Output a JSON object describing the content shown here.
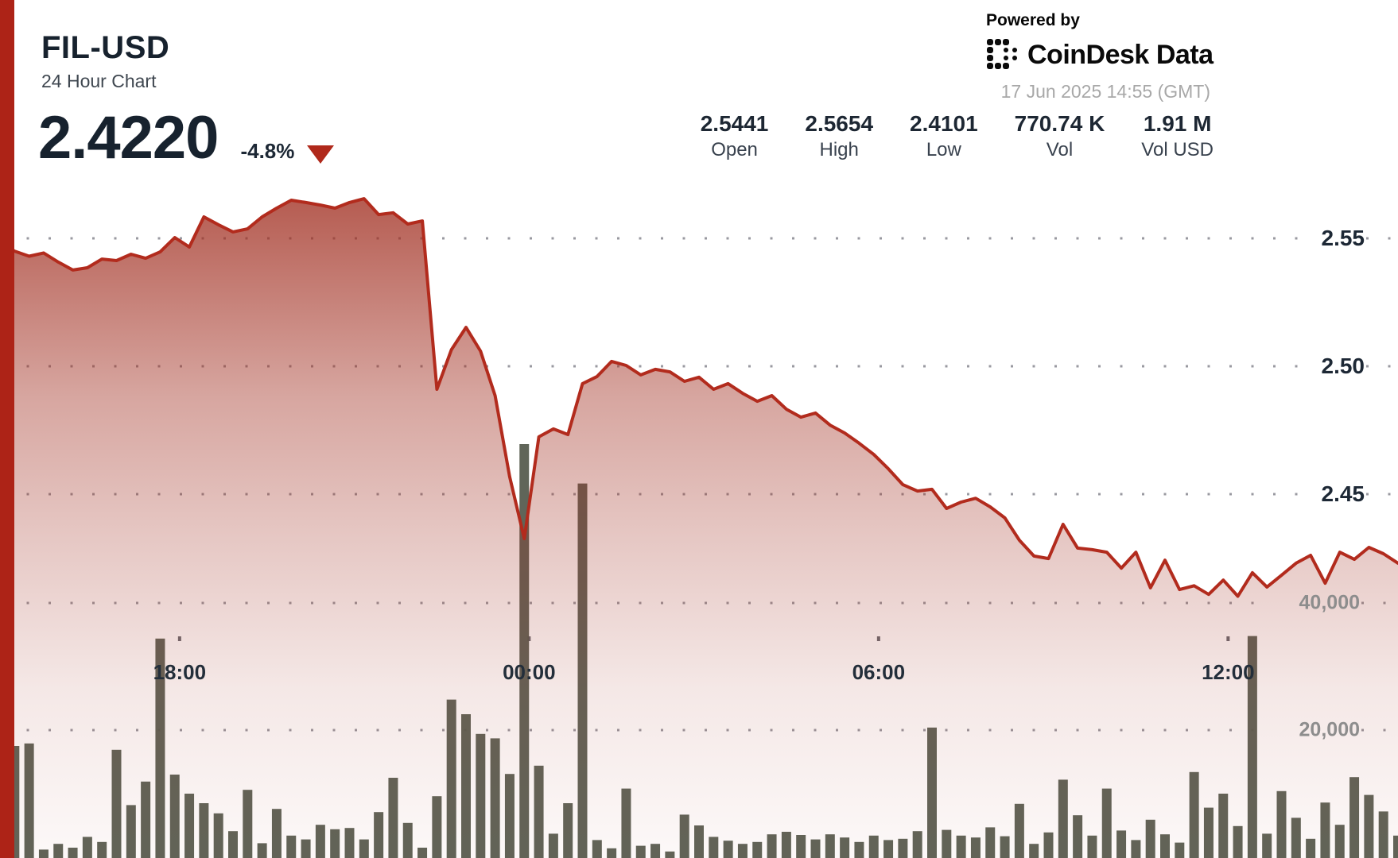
{
  "header": {
    "symbol": "FIL-USD",
    "subtitle": "24 Hour Chart",
    "price": "2.4220",
    "change": "-4.8%"
  },
  "powered_by": {
    "label": "Powered by",
    "brand": "CoinDesk",
    "brand_suffix": "Data",
    "timestamp": "17 Jun 2025 14:55 (GMT)"
  },
  "stats": [
    {
      "value": "2.5441",
      "label": "Open"
    },
    {
      "value": "2.5654",
      "label": "High"
    },
    {
      "value": "2.4101",
      "label": "Low"
    },
    {
      "value": "770.74 K",
      "label": "Vol"
    },
    {
      "value": "1.91 M",
      "label": "Vol USD"
    }
  ],
  "colors": {
    "accent_red": "#ad2317",
    "line_red": "#b22b1d",
    "fill_red": "#a02c1e",
    "volume_bar": "#575d50",
    "grid_dot": "#8e8e96",
    "tick_dark": "#1d2835",
    "tick_gray": "#8d8d8d"
  },
  "chart_data": {
    "type": "line",
    "title": "FIL-USD 24 Hour Chart",
    "subtitle_note": "price area series with volume bars, 15-minute intervals over 24 hours ending 17 Jun 2025 14:55 GMT",
    "interval_minutes": 15,
    "x_axis": {
      "span_hours": 24,
      "grid": false,
      "ticks": [
        {
          "label": "18:00",
          "hour": 3.0833
        },
        {
          "label": "00:00",
          "hour": 9.0833
        },
        {
          "label": "06:00",
          "hour": 15.0833
        },
        {
          "label": "12:00",
          "hour": 21.0833
        }
      ]
    },
    "price_axis": {
      "side": "right",
      "ticks": [
        {
          "label": "2.55",
          "value": 2.55
        },
        {
          "label": "2.50",
          "value": 2.5
        },
        {
          "label": "2.45",
          "value": 2.45
        }
      ],
      "visible_range": [
        2.4,
        2.57
      ]
    },
    "volume_axis": {
      "side": "right",
      "ticks": [
        {
          "label": "40,000",
          "value": 40000
        },
        {
          "label": "20,000",
          "value": 20000
        }
      ]
    },
    "series": [
      {
        "name": "price",
        "type": "area-line",
        "values": [
          2.5484,
          2.545,
          2.543,
          2.5443,
          2.5407,
          2.5376,
          2.5385,
          2.5419,
          2.5413,
          2.5438,
          2.5422,
          2.5447,
          2.5503,
          2.5466,
          2.5584,
          2.5553,
          2.5525,
          2.5537,
          2.5584,
          2.5618,
          2.5649,
          2.564,
          2.563,
          2.5618,
          2.564,
          2.5655,
          2.5593,
          2.56,
          2.5556,
          2.5568,
          2.491,
          2.5065,
          2.5152,
          2.5059,
          2.4885,
          2.4568,
          2.4326,
          2.4724,
          2.4755,
          2.4733,
          2.4932,
          2.496,
          2.5019,
          2.5003,
          2.4966,
          2.4988,
          2.4978,
          2.4941,
          2.4957,
          2.491,
          2.4932,
          2.4894,
          2.4863,
          2.4885,
          2.4832,
          2.4801,
          2.4817,
          2.477,
          2.4739,
          2.4699,
          2.4655,
          2.4599,
          2.4537,
          2.4512,
          2.4519,
          2.4444,
          2.4469,
          2.4484,
          2.445,
          2.4407,
          2.432,
          2.4258,
          2.4248,
          2.4382,
          2.4289,
          2.4283,
          2.4273,
          2.4211,
          2.4273,
          2.4134,
          2.4242,
          2.4127,
          2.4142,
          2.4108,
          2.4164,
          2.4101,
          2.4193,
          2.4137,
          2.4183,
          2.423,
          2.4261,
          2.4152,
          2.4273,
          2.4245,
          2.4292,
          2.4267,
          2.423
        ]
      },
      {
        "name": "volume",
        "type": "bar",
        "values": [
          10000,
          17500,
          17900,
          1200,
          2100,
          1500,
          3200,
          2400,
          16900,
          8200,
          11900,
          34400,
          13000,
          10000,
          8500,
          6900,
          4100,
          10600,
          2200,
          7600,
          3400,
          2800,
          5100,
          4400,
          4600,
          2800,
          7100,
          12500,
          5400,
          1500,
          9600,
          24800,
          22500,
          19400,
          18700,
          13100,
          65000,
          14400,
          3700,
          8500,
          58800,
          2700,
          1400,
          10800,
          1800,
          2100,
          900,
          6700,
          5000,
          3200,
          2600,
          2100,
          2400,
          3600,
          4000,
          3500,
          2800,
          3600,
          3100,
          2400,
          3400,
          2700,
          2900,
          4100,
          20400,
          4300,
          3400,
          3100,
          4700,
          3300,
          8400,
          2100,
          3900,
          12200,
          6600,
          3400,
          10800,
          4200,
          2700,
          5900,
          3600,
          2300,
          13400,
          7800,
          10000,
          4900,
          34800,
          3700,
          10400,
          6200,
          2900,
          8600,
          5100,
          12600,
          9800,
          7200,
          3400
        ]
      }
    ],
    "summary": {
      "open": 2.5441,
      "high": 2.5654,
      "low": 2.4101,
      "close": 2.422,
      "change_pct": -4.8,
      "volume": 770740,
      "volume_usd": 1910000
    }
  }
}
